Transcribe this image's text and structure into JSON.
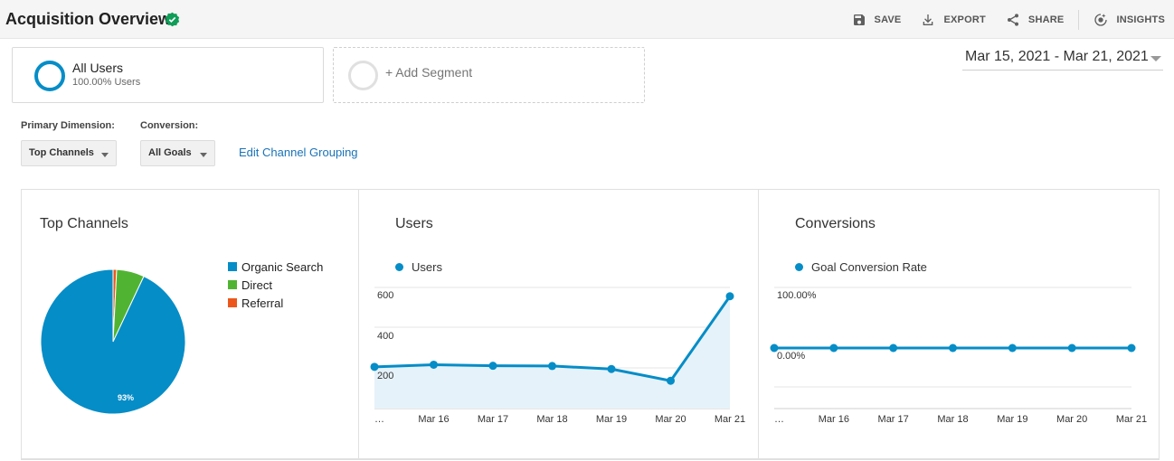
{
  "header": {
    "title": "Acquisition Overview",
    "actions": [
      {
        "label": "SAVE",
        "icon": "save-icon"
      },
      {
        "label": "EXPORT",
        "icon": "export-icon"
      },
      {
        "label": "SHARE",
        "icon": "share-icon"
      },
      {
        "label": "INSIGHTS",
        "icon": "insights-icon"
      }
    ]
  },
  "segments": {
    "active": {
      "name": "All Users",
      "sub": "100.00% Users",
      "color": "#058dc7"
    },
    "add_label": "+ Add Segment"
  },
  "date_range": "Mar 15, 2021 - Mar 21, 2021",
  "controls": {
    "primary_dimension_label": "Primary Dimension:",
    "primary_dimension_value": "Top Channels",
    "conversion_label": "Conversion:",
    "conversion_value": "All Goals",
    "edit_link": "Edit Channel Grouping"
  },
  "panels": {
    "top_channels": {
      "title": "Top Channels"
    },
    "users": {
      "title": "Users"
    },
    "conversions": {
      "title": "Conversions"
    }
  },
  "chart_data": [
    {
      "type": "pie",
      "title": "Top Channels",
      "categories": [
        "Organic Search",
        "Direct",
        "Referral"
      ],
      "values": [
        93,
        6.2,
        0.8
      ],
      "colors": [
        "#058dc7",
        "#50b432",
        "#ed561b"
      ],
      "data_labels": [
        "93%"
      ]
    },
    {
      "type": "area",
      "title": "Users",
      "series": [
        {
          "name": "Users",
          "values": [
            195,
            205,
            200,
            199,
            185,
            130,
            525
          ],
          "color": "#058dc7"
        }
      ],
      "x": [
        "…",
        "Mar 16",
        "Mar 17",
        "Mar 18",
        "Mar 19",
        "Mar 20",
        "Mar 21"
      ],
      "y_ticks": [
        "600",
        "400",
        "200"
      ],
      "ylim": [
        0,
        600
      ],
      "grid": true
    },
    {
      "type": "line",
      "title": "Conversions",
      "series": [
        {
          "name": "Goal Conversion Rate",
          "values": [
            0,
            0,
            0,
            0,
            0,
            0,
            0
          ],
          "color": "#058dc7"
        }
      ],
      "x": [
        "…",
        "Mar 16",
        "Mar 17",
        "Mar 18",
        "Mar 19",
        "Mar 20",
        "Mar 21"
      ],
      "y_ticks": [
        "100.00%",
        "0.00%"
      ],
      "grid": true
    }
  ]
}
